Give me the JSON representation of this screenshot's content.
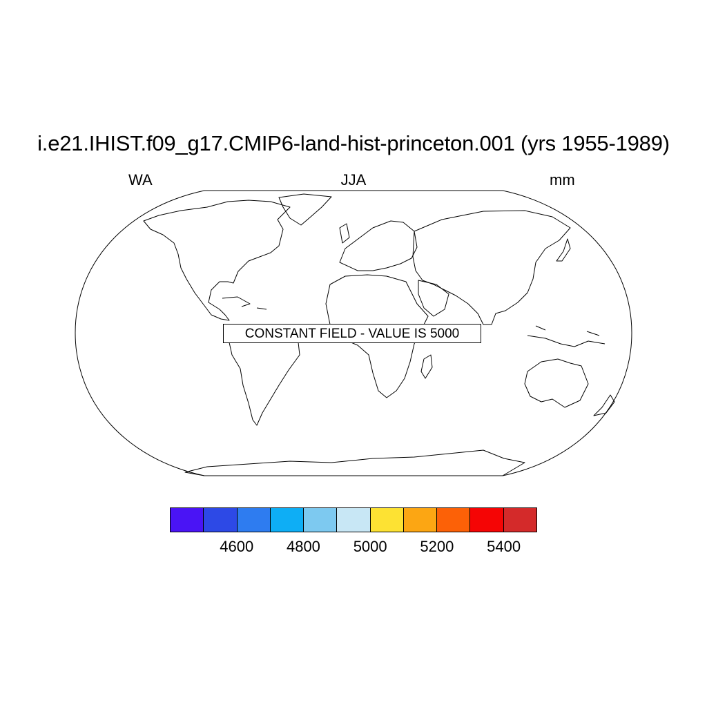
{
  "title": "i.e21.IHIST.f09_g17.CMIP6-land-hist-princeton.001 (yrs 1955-1989)",
  "left_string": "WA",
  "center_string": "JJA",
  "right_string": "mm",
  "annotation": "CONSTANT FIELD - VALUE IS 5000",
  "colorbar": {
    "colors": [
      "#4a14f5",
      "#2d49e6",
      "#2e7cf0",
      "#0eaef5",
      "#7dc9f0",
      "#c8e7f5",
      "#fde233",
      "#fca613",
      "#fc6107",
      "#f50505",
      "#d42a2a"
    ],
    "tick_labels": [
      "4600",
      "4800",
      "5000",
      "5200",
      "5400"
    ]
  }
}
